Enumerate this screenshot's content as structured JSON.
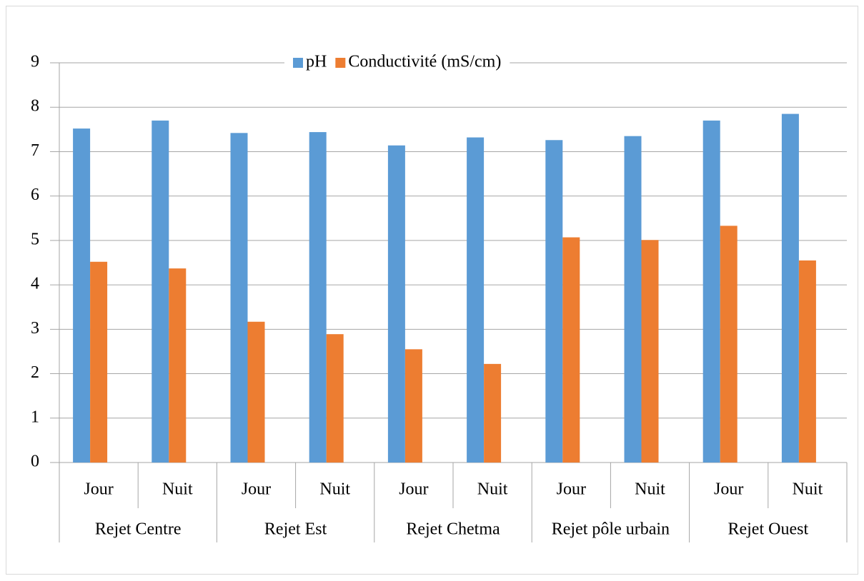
{
  "chart_data": {
    "type": "bar",
    "categories": [
      "Jour",
      "Nuit",
      "Jour",
      "Nuit",
      "Jour",
      "Nuit",
      "Jour",
      "Nuit",
      "Jour",
      "Nuit"
    ],
    "groups": [
      "Rejet Centre",
      "Rejet Est",
      "Rejet Chetma",
      "Rejet pôle urbain",
      "Rejet Ouest"
    ],
    "series": [
      {
        "name": "pH",
        "color": "#5b9bd5",
        "values": [
          7.52,
          7.7,
          7.42,
          7.44,
          7.14,
          7.32,
          7.26,
          7.35,
          7.7,
          7.85
        ]
      },
      {
        "name": "Conductivité (mS/cm)",
        "color": "#ed7d31",
        "values": [
          4.52,
          4.37,
          3.17,
          2.89,
          2.55,
          2.22,
          5.07,
          5.01,
          5.33,
          4.55
        ]
      }
    ],
    "ylim": [
      0,
      9
    ],
    "yticks": [
      0,
      1,
      2,
      3,
      4,
      5,
      6,
      7,
      8,
      9
    ],
    "grid": true,
    "legend": "top"
  }
}
